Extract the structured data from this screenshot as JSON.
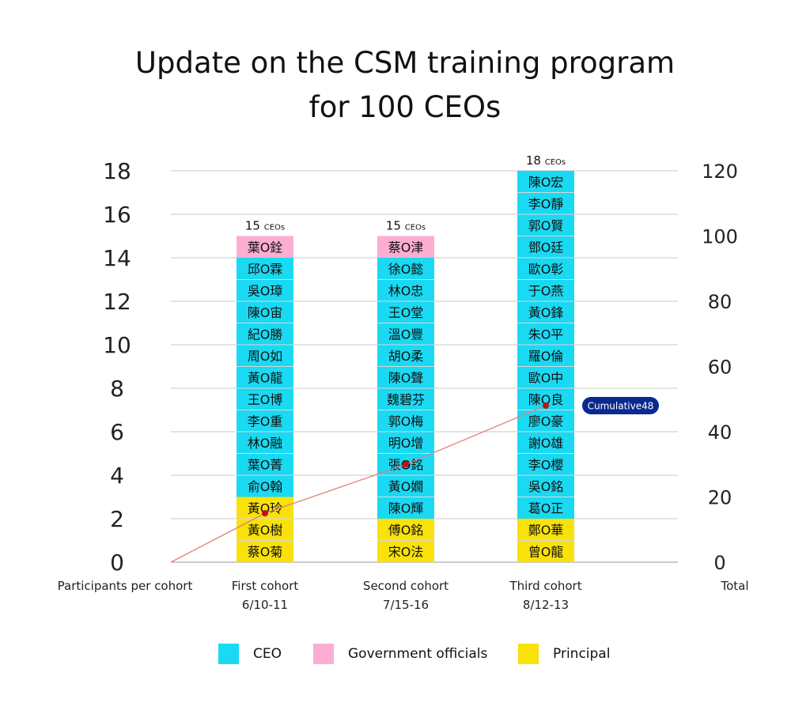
{
  "chart_data": {
    "type": "bar",
    "title_lines": [
      "Update on the CSM training program",
      "for 100 CEOs"
    ],
    "ylabel_left": "Participants per cohort",
    "ylabel_right": "Total",
    "ylim_left": [
      0,
      18
    ],
    "yticks_left": [
      0,
      2,
      4,
      6,
      8,
      10,
      12,
      14,
      16,
      18
    ],
    "ylim_right": [
      0,
      120
    ],
    "yticks_right": [
      0,
      20,
      40,
      60,
      80,
      100,
      120
    ],
    "grid": true,
    "legend_position": "bottom",
    "legend": [
      {
        "key": "ceo",
        "label": "CEO",
        "color": "#1ad9f2"
      },
      {
        "key": "gov",
        "label": "Government officials",
        "color": "#fbaed2"
      },
      {
        "key": "principal",
        "label": "Principal",
        "color": "#f9e10c"
      }
    ],
    "categories": [
      {
        "name": "First cohort",
        "date": "6/10-11",
        "total": 15,
        "total_label": "CEOs",
        "cumulative": 15,
        "segments": [
          {
            "type": "principal",
            "names": [
              "蔡O菊",
              "黃O樹",
              "黃O玲"
            ]
          },
          {
            "type": "ceo",
            "names": [
              "俞O翰",
              "葉O菁",
              "林O融",
              "李O重",
              "王O博",
              "黃O龍",
              "周O如",
              "紀O勝",
              "陳O宙",
              "吳O璋",
              "邱O霖"
            ]
          },
          {
            "type": "gov",
            "names": [
              "葉O銓"
            ]
          }
        ]
      },
      {
        "name": "Second cohort",
        "date": "7/15-16",
        "total": 15,
        "total_label": "CEOs",
        "cumulative": 30,
        "segments": [
          {
            "type": "principal",
            "names": [
              "宋O法",
              "傅O銘"
            ]
          },
          {
            "type": "ceo",
            "names": [
              "陳O輝",
              "黃O嫺",
              "張O銘",
              "明O增",
              "郭O梅",
              "魏碧芬",
              "陳O聲",
              "胡O柔",
              "溫O豐",
              "王O堂",
              "林O忠",
              "徐O懿"
            ]
          },
          {
            "type": "gov",
            "names": [
              "蔡O津"
            ]
          }
        ]
      },
      {
        "name": "Third cohort",
        "date": "8/12-13",
        "total": 18,
        "total_label": "CEOs",
        "cumulative": 48,
        "segments": [
          {
            "type": "principal",
            "names": [
              "曾O龍",
              "鄭O華"
            ]
          },
          {
            "type": "ceo",
            "names": [
              "葛O正",
              "吳O銘",
              "李O櫻",
              "謝O雄",
              "廖O豪",
              "陳O良",
              "歐O中",
              "羅O倫",
              "朱O平",
              "黃O鋒",
              "于O燕",
              "歐O彰",
              "鄧O廷",
              "郭O賢",
              "李O靜",
              "陳O宏"
            ]
          }
        ]
      }
    ],
    "cumulative_series": {
      "start_value": 0,
      "values": [
        15,
        30,
        48
      ],
      "line_color": "#e0827a",
      "point_color": "#c0101a",
      "annotation": "Cumulative48",
      "annotation_color": "#0b2a8f"
    }
  }
}
